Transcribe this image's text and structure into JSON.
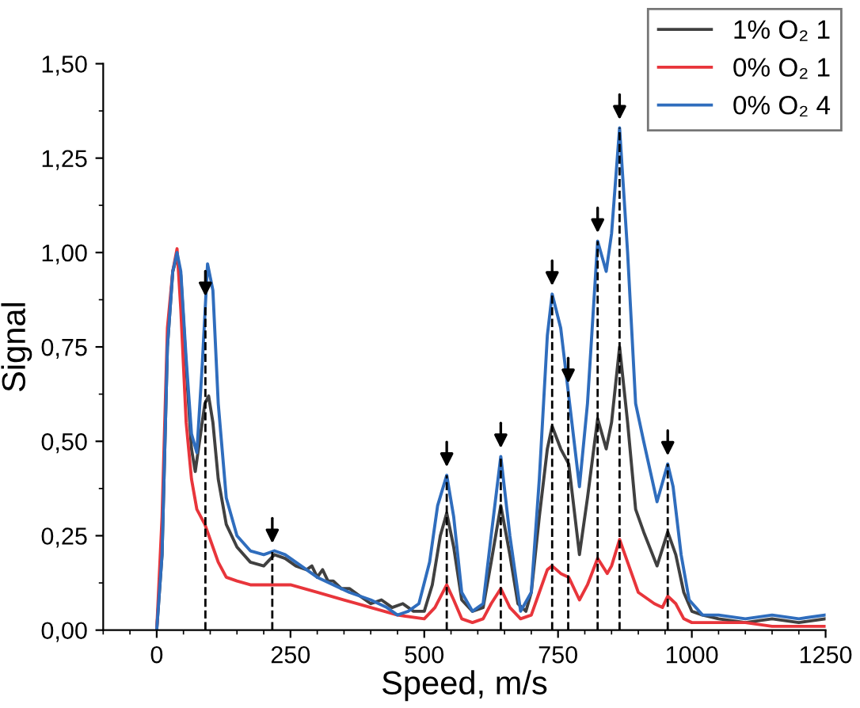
{
  "chart_data": {
    "type": "line",
    "xlabel": "Speed, m/s",
    "ylabel": "Signal",
    "xlim": [
      -100,
      1250
    ],
    "ylim": [
      0,
      1.5
    ],
    "xticks": [
      0,
      250,
      500,
      750,
      1000,
      1250
    ],
    "yticks": [
      {
        "value": 0,
        "label": "0,00"
      },
      {
        "value": 0.25,
        "label": "0,25"
      },
      {
        "value": 0.5,
        "label": "0,50"
      },
      {
        "value": 0.75,
        "label": "0,75"
      },
      {
        "value": 1.0,
        "label": "1,00"
      },
      {
        "value": 1.25,
        "label": "1,25"
      },
      {
        "value": 1.5,
        "label": "1,50"
      }
    ],
    "grid": false,
    "legend": "top right",
    "marker": "none",
    "line_style": "solid",
    "series": [
      {
        "name": "1% O₂ 1",
        "color": "#404040",
        "x": [
          0,
          10,
          20,
          30,
          38,
          45,
          55,
          65,
          72,
          80,
          90,
          97,
          105,
          115,
          130,
          150,
          175,
          200,
          220,
          240,
          260,
          280,
          290,
          300,
          310,
          320,
          330,
          345,
          360,
          380,
          400,
          420,
          440,
          460,
          480,
          500,
          515,
          530,
          542,
          555,
          570,
          590,
          610,
          625,
          643,
          660,
          675,
          690,
          700,
          715,
          730,
          739,
          755,
          770,
          790,
          805,
          824,
          840,
          850,
          865,
          880,
          895,
          910,
          935,
          955,
          970,
          985,
          1000,
          1020,
          1050,
          1100,
          1150,
          1200,
          1250
        ],
        "values": [
          0,
          0.2,
          0.75,
          0.95,
          0.99,
          0.94,
          0.7,
          0.48,
          0.42,
          0.5,
          0.6,
          0.62,
          0.55,
          0.4,
          0.28,
          0.22,
          0.18,
          0.17,
          0.2,
          0.19,
          0.17,
          0.16,
          0.17,
          0.14,
          0.16,
          0.13,
          0.13,
          0.11,
          0.11,
          0.09,
          0.07,
          0.08,
          0.06,
          0.07,
          0.05,
          0.05,
          0.12,
          0.25,
          0.31,
          0.22,
          0.08,
          0.05,
          0.06,
          0.18,
          0.33,
          0.2,
          0.07,
          0.05,
          0.1,
          0.3,
          0.48,
          0.54,
          0.48,
          0.44,
          0.2,
          0.35,
          0.56,
          0.48,
          0.55,
          0.75,
          0.55,
          0.32,
          0.26,
          0.17,
          0.26,
          0.2,
          0.1,
          0.05,
          0.04,
          0.03,
          0.02,
          0.03,
          0.02,
          0.03
        ]
      },
      {
        "name": "0% O₂ 1",
        "color": "#e8353b",
        "x": [
          0,
          10,
          20,
          30,
          38,
          45,
          55,
          65,
          75,
          90,
          100,
          115,
          130,
          150,
          175,
          200,
          225,
          250,
          300,
          350,
          400,
          450,
          500,
          520,
          542,
          555,
          570,
          590,
          610,
          625,
          643,
          660,
          680,
          700,
          715,
          730,
          739,
          755,
          770,
          790,
          805,
          824,
          842,
          850,
          865,
          880,
          900,
          930,
          945,
          955,
          970,
          985,
          1000,
          1050,
          1100,
          1150,
          1200,
          1250
        ],
        "values": [
          0,
          0.3,
          0.8,
          0.95,
          1.01,
          0.85,
          0.55,
          0.4,
          0.32,
          0.28,
          0.24,
          0.18,
          0.14,
          0.13,
          0.12,
          0.12,
          0.12,
          0.12,
          0.1,
          0.08,
          0.06,
          0.04,
          0.03,
          0.06,
          0.12,
          0.08,
          0.03,
          0.02,
          0.03,
          0.07,
          0.11,
          0.06,
          0.03,
          0.04,
          0.1,
          0.16,
          0.17,
          0.15,
          0.14,
          0.08,
          0.12,
          0.19,
          0.15,
          0.17,
          0.24,
          0.18,
          0.1,
          0.07,
          0.06,
          0.09,
          0.07,
          0.03,
          0.02,
          0.02,
          0.02,
          0.01,
          0.01,
          0.01
        ]
      },
      {
        "name": "0% O₂ 4",
        "color": "#2f6dbd",
        "x": [
          0,
          10,
          20,
          30,
          38,
          45,
          55,
          65,
          75,
          85,
          95,
          105,
          115,
          130,
          150,
          175,
          200,
          220,
          240,
          270,
          300,
          330,
          360,
          400,
          430,
          450,
          470,
          490,
          510,
          525,
          542,
          555,
          570,
          590,
          610,
          625,
          643,
          660,
          680,
          700,
          715,
          730,
          739,
          755,
          770,
          790,
          805,
          824,
          840,
          850,
          865,
          880,
          895,
          910,
          935,
          955,
          965,
          980,
          995,
          1020,
          1050,
          1100,
          1150,
          1200,
          1250
        ],
        "values": [
          0,
          0.2,
          0.75,
          0.95,
          1.0,
          0.95,
          0.72,
          0.52,
          0.47,
          0.7,
          0.97,
          0.9,
          0.6,
          0.35,
          0.25,
          0.21,
          0.2,
          0.21,
          0.2,
          0.17,
          0.14,
          0.12,
          0.1,
          0.08,
          0.06,
          0.04,
          0.05,
          0.07,
          0.18,
          0.33,
          0.41,
          0.3,
          0.1,
          0.05,
          0.07,
          0.25,
          0.46,
          0.25,
          0.05,
          0.1,
          0.4,
          0.78,
          0.89,
          0.8,
          0.62,
          0.38,
          0.6,
          1.03,
          0.95,
          1.05,
          1.33,
          1.0,
          0.6,
          0.5,
          0.34,
          0.44,
          0.38,
          0.2,
          0.08,
          0.04,
          0.04,
          0.03,
          0.04,
          0.03,
          0.04
        ]
      }
    ],
    "ref_lines": [
      {
        "axis": "x",
        "value": 91,
        "line_style": "dashed",
        "color": "#000000"
      },
      {
        "axis": "x",
        "value": 216,
        "line_style": "dashed",
        "color": "#000000"
      },
      {
        "axis": "x",
        "value": 542,
        "line_style": "dashed",
        "color": "#000000"
      },
      {
        "axis": "x",
        "value": 643,
        "line_style": "dashed",
        "color": "#000000"
      },
      {
        "axis": "x",
        "value": 739,
        "line_style": "dashed",
        "color": "#000000"
      },
      {
        "axis": "x",
        "value": 769,
        "line_style": "dashed",
        "color": "#000000"
      },
      {
        "axis": "x",
        "value": 824,
        "line_style": "dashed",
        "color": "#000000"
      },
      {
        "axis": "x",
        "value": 865,
        "line_style": "dashed",
        "color": "#000000"
      },
      {
        "axis": "x",
        "value": 955,
        "line_style": "dashed",
        "color": "#000000"
      }
    ]
  }
}
